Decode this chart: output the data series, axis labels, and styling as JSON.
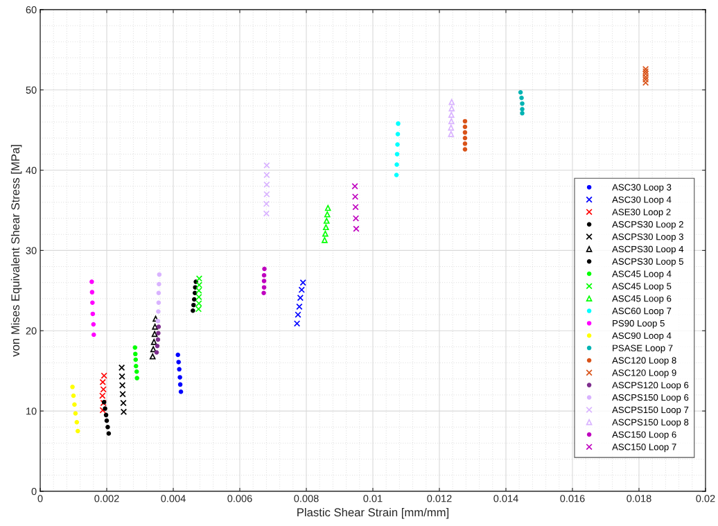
{
  "chart_data": {
    "type": "scatter",
    "xlabel": "Plastic Shear Strain [mm/mm]",
    "ylabel": "von Mises Equivalent Shear Stress [MPa]",
    "xlim": [
      0,
      0.02
    ],
    "xticks": [
      0,
      0.002,
      0.004,
      0.006,
      0.008,
      0.01,
      0.012,
      0.014,
      0.016,
      0.018,
      0.02
    ],
    "ylim": [
      0,
      60
    ],
    "yticks": [
      0,
      10,
      20,
      30,
      40,
      50,
      60
    ],
    "grid": true,
    "legend": "right",
    "series": [
      {
        "name": "ASC30 Loop 3",
        "color": "#0000ff",
        "marker": "circle",
        "x": [
          0.00414,
          0.00416,
          0.00418,
          0.0042,
          0.00421,
          0.00423
        ],
        "values": [
          17.0,
          16.1,
          15.2,
          14.2,
          13.3,
          12.4
        ]
      },
      {
        "name": "ASC30 Loop 4",
        "color": "#0000ff",
        "marker": "cross",
        "x": [
          0.00772,
          0.00775,
          0.00779,
          0.00782,
          0.00786,
          0.0079
        ],
        "values": [
          20.9,
          22.0,
          23.0,
          24.1,
          25.1,
          26.0
        ]
      },
      {
        "name": "ASE30 Loop 2",
        "color": "#ff0000",
        "marker": "cross",
        "x": [
          0.00188,
          0.0019,
          0.00187,
          0.0019,
          0.00188,
          0.00192
        ],
        "values": [
          10.1,
          11.0,
          11.9,
          12.7,
          13.6,
          14.4
        ]
      },
      {
        "name": "ASCPS30 Loop 2",
        "color": "#000000",
        "marker": "circle",
        "x": [
          0.00192,
          0.00195,
          0.00198,
          0.002,
          0.00203,
          0.00206
        ],
        "values": [
          11.1,
          10.3,
          9.5,
          8.8,
          8.0,
          7.2
        ]
      },
      {
        "name": "ASCPS30 Loop 3",
        "color": "#000000",
        "marker": "cross",
        "x": [
          0.00245,
          0.00246,
          0.00247,
          0.00248,
          0.0025,
          0.00251
        ],
        "values": [
          15.4,
          14.3,
          13.2,
          12.1,
          11.0,
          9.9
        ]
      },
      {
        "name": "ASCPS30 Loop 4",
        "color": "#000000",
        "marker": "triangle",
        "x": [
          0.00338,
          0.0034,
          0.00342,
          0.00344,
          0.00345,
          0.00347
        ],
        "values": [
          16.8,
          17.7,
          18.6,
          19.6,
          20.5,
          21.5
        ]
      },
      {
        "name": "ASCPS30 Loop 5",
        "color": "#000000",
        "marker": "circle",
        "x": [
          0.00459,
          0.00461,
          0.00463,
          0.00465,
          0.00466,
          0.00468
        ],
        "values": [
          22.5,
          23.2,
          23.9,
          24.7,
          25.4,
          26.1
        ]
      },
      {
        "name": "ASC45 Loop 4",
        "color": "#00ff00",
        "marker": "circle",
        "x": [
          0.00285,
          0.00286,
          0.00287,
          0.00288,
          0.0029,
          0.00291
        ],
        "values": [
          17.9,
          17.1,
          16.4,
          15.6,
          14.9,
          14.1
        ]
      },
      {
        "name": "ASC45 Loop 5",
        "color": "#00ff00",
        "marker": "cross",
        "x": [
          0.00476,
          0.00477,
          0.00477,
          0.00477,
          0.00478,
          0.00478
        ],
        "values": [
          22.7,
          23.4,
          24.2,
          25.0,
          25.7,
          26.5
        ]
      },
      {
        "name": "ASC45 Loop 6",
        "color": "#00ff00",
        "marker": "triangle",
        "x": [
          0.00855,
          0.00857,
          0.00859,
          0.00861,
          0.00863,
          0.00865
        ],
        "values": [
          31.3,
          32.1,
          32.9,
          33.7,
          34.5,
          35.3
        ]
      },
      {
        "name": "ASC60 Loop 7",
        "color": "#00ffff",
        "marker": "circle",
        "x": [
          0.01071,
          0.01072,
          0.01073,
          0.01074,
          0.01075,
          0.01076
        ],
        "values": [
          39.4,
          40.7,
          42.0,
          43.2,
          44.5,
          45.8
        ]
      },
      {
        "name": "PS90 Loop 5",
        "color": "#ff00ff",
        "marker": "circle",
        "x": [
          0.00155,
          0.00156,
          0.00157,
          0.00158,
          0.0016,
          0.00161
        ],
        "values": [
          26.1,
          24.8,
          23.5,
          22.1,
          20.8,
          19.5
        ]
      },
      {
        "name": "ASC90 Loop 4",
        "color": "#ffff00",
        "marker": "circle",
        "x": [
          0.00097,
          0.001,
          0.00103,
          0.00106,
          0.0011,
          0.00113
        ],
        "values": [
          13.0,
          11.9,
          10.8,
          9.7,
          8.6,
          7.5
        ]
      },
      {
        "name": "PSASE Loop 7",
        "color": "#00b3b3",
        "marker": "circle",
        "x": [
          0.01444,
          0.01447,
          0.01449,
          0.01449,
          0.01449
        ],
        "values": [
          49.7,
          49.0,
          48.3,
          47.6,
          47.1
        ]
      },
      {
        "name": "ASC120 Loop 8",
        "color": "#d95319",
        "marker": "circle",
        "x": [
          0.01277,
          0.01277,
          0.01277,
          0.01277,
          0.01277,
          0.01277
        ],
        "values": [
          42.6,
          43.3,
          44.0,
          44.7,
          45.4,
          46.1
        ]
      },
      {
        "name": "ASC120 Loop 9",
        "color": "#d95319",
        "marker": "cross",
        "x": [
          0.0182,
          0.0182,
          0.0182,
          0.0182,
          0.0182,
          0.0182
        ],
        "values": [
          50.9,
          51.3,
          51.6,
          52.0,
          52.3,
          52.6
        ]
      },
      {
        "name": "ASCPS120 Loop 6",
        "color": "#7e2f8e",
        "marker": "circle",
        "x": [
          0.0035,
          0.00352,
          0.00354,
          0.00355,
          0.00356
        ],
        "values": [
          17.3,
          18.1,
          18.9,
          19.7,
          20.5
        ]
      },
      {
        "name": "ASCPS150 Loop 6",
        "color": "#d9b3ff",
        "marker": "circle",
        "x": [
          0.00354,
          0.00355,
          0.00356,
          0.00356,
          0.00357,
          0.00358
        ],
        "values": [
          21.2,
          22.4,
          23.5,
          24.7,
          25.8,
          27.0
        ]
      },
      {
        "name": "ASCPS150 Loop 7",
        "color": "#d9b3ff",
        "marker": "cross",
        "x": [
          0.0068,
          0.0068,
          0.00681,
          0.00681,
          0.00681,
          0.00681
        ],
        "values": [
          34.6,
          35.8,
          37.0,
          38.2,
          39.4,
          40.6
        ]
      },
      {
        "name": "ASCPS150 Loop 8",
        "color": "#d9b3ff",
        "marker": "triangle",
        "x": [
          0.01235,
          0.01235,
          0.01236,
          0.01236,
          0.01237,
          0.01237
        ],
        "values": [
          44.5,
          45.3,
          46.1,
          46.9,
          47.7,
          48.5
        ]
      },
      {
        "name": "ASC150 Loop 6",
        "color": "#bf00bf",
        "marker": "circle",
        "x": [
          0.00672,
          0.00673,
          0.00673,
          0.00673,
          0.00674
        ],
        "values": [
          24.7,
          25.4,
          26.2,
          26.9,
          27.7
        ]
      },
      {
        "name": "ASC150 Loop 7",
        "color": "#bf00bf",
        "marker": "cross",
        "x": [
          0.0095,
          0.00949,
          0.00948,
          0.00947,
          0.00946
        ],
        "values": [
          32.7,
          34.0,
          35.4,
          36.7,
          38.0
        ]
      }
    ]
  }
}
